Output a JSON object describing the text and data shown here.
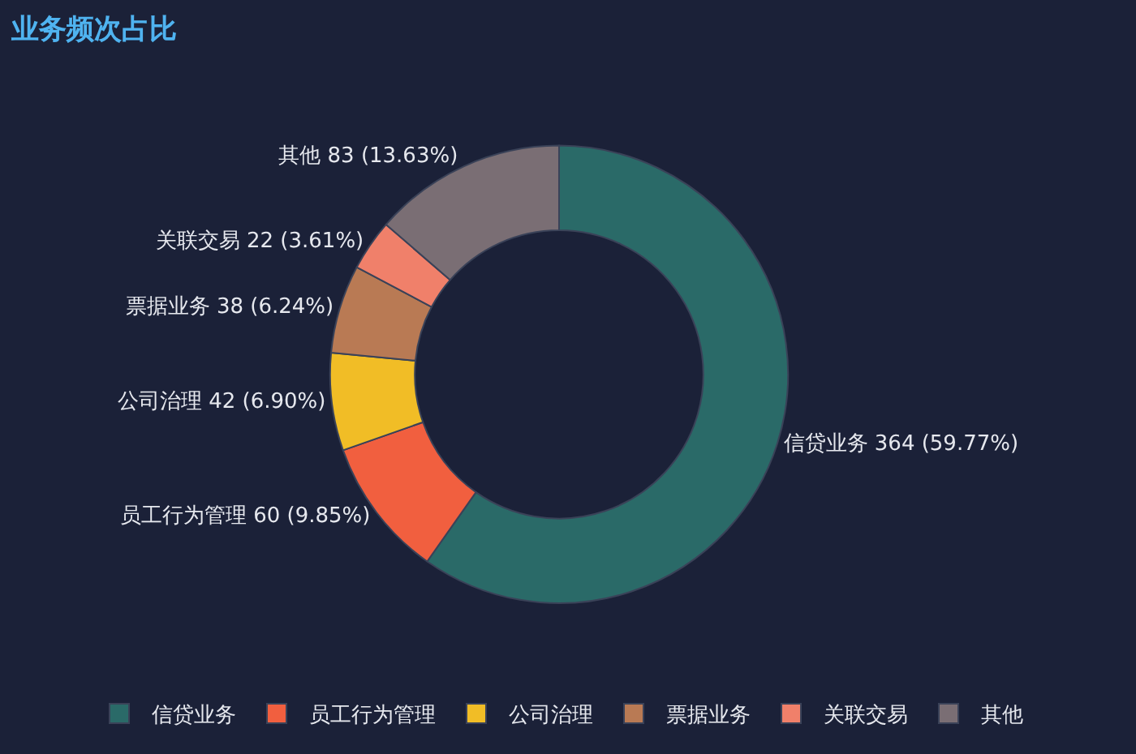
{
  "chart_data": {
    "type": "donut",
    "title": "业务频次占比",
    "categories": [
      "信贷业务",
      "员工行为管理",
      "公司治理",
      "票据业务",
      "关联交易",
      "其他"
    ],
    "values": [
      364,
      60,
      42,
      38,
      22,
      83
    ],
    "colors": [
      "#2a6a68",
      "#f15f3f",
      "#f1bd26",
      "#b97a54",
      "#f0806a",
      "#7a6e74"
    ],
    "value_labels": [
      "信贷业务 364 (59.77%)",
      "员工行为管理 60 (9.85%)",
      "公司治理 42 (6.90%)",
      "票据业务 38 (6.24%)",
      "关联交易 22 (3.61%)",
      "其他 83 (13.63%)"
    ],
    "legend": "bottom"
  }
}
